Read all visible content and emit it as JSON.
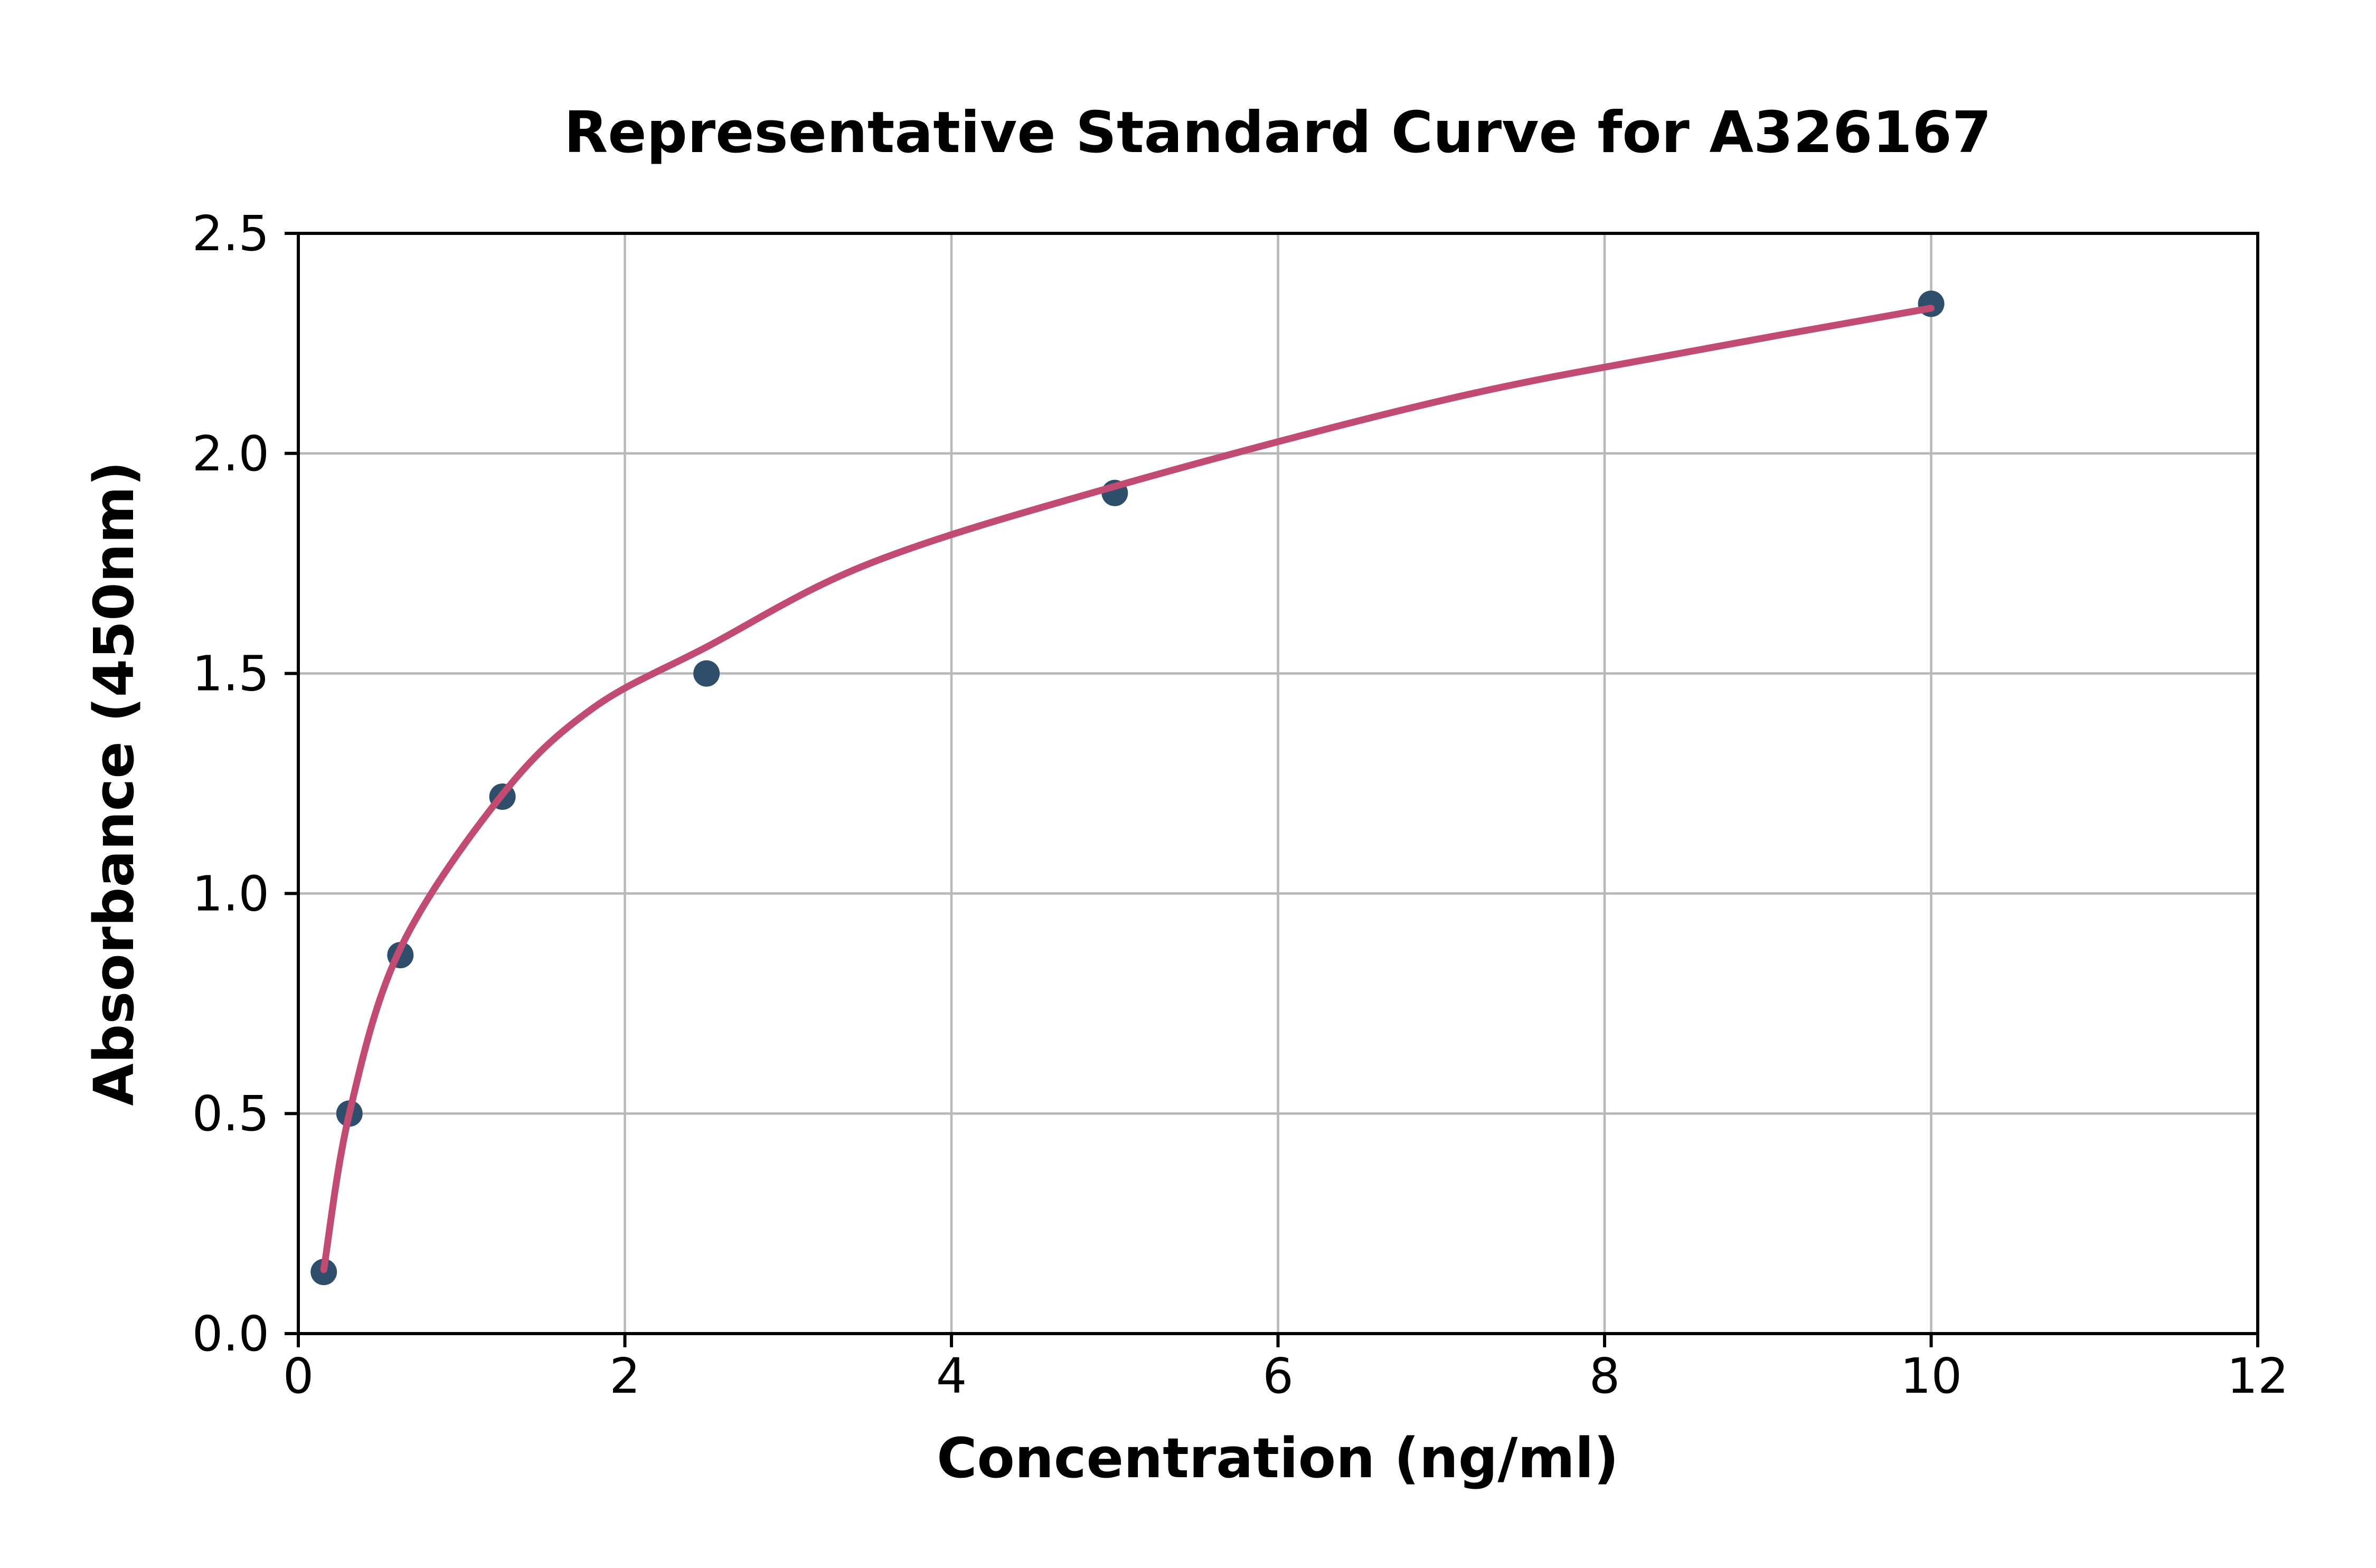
{
  "chart_data": {
    "type": "scatter",
    "title": "Representative Standard Curve for A326167",
    "xlabel": "Concentration (ng/ml)",
    "ylabel": "Absorbance (450nm)",
    "xlim": [
      0,
      12
    ],
    "ylim": [
      0,
      2.5
    ],
    "x_ticks": [
      0,
      2,
      4,
      6,
      8,
      10,
      12
    ],
    "x_tick_labels": [
      "0",
      "2",
      "4",
      "6",
      "8",
      "10",
      "12"
    ],
    "y_ticks": [
      0,
      0.5,
      1,
      1.5,
      2,
      2.5
    ],
    "y_tick_labels": [
      "0.0",
      "0.5",
      "1.0",
      "1.5",
      "2.0",
      "2.5"
    ],
    "grid": true,
    "legend_position": "none",
    "series": [
      {
        "name": "standard-points",
        "type": "scatter",
        "x": [
          0.156,
          0.313,
          0.625,
          1.25,
          2.5,
          5,
          10
        ],
        "y": [
          0.14,
          0.5,
          0.86,
          1.22,
          1.5,
          1.91,
          2.34
        ],
        "color": "#2f4e6c"
      },
      {
        "name": "fitted-curve",
        "type": "line",
        "x": [
          0.156,
          0.3125,
          0.625,
          1.25,
          1.8,
          2.5,
          3.5,
          5,
          7,
          8.5,
          10
        ],
        "y": [
          0.145,
          0.5,
          0.875,
          1.225,
          1.42,
          1.56,
          1.75,
          1.925,
          2.12,
          2.23,
          2.33
        ],
        "color": "#c24b72"
      }
    ],
    "colors": {
      "grid": "#b8b8b8",
      "spine": "#000000",
      "text": "#000000",
      "background": "#ffffff",
      "point": "#2f4e6c",
      "curve": "#c24b72"
    }
  }
}
